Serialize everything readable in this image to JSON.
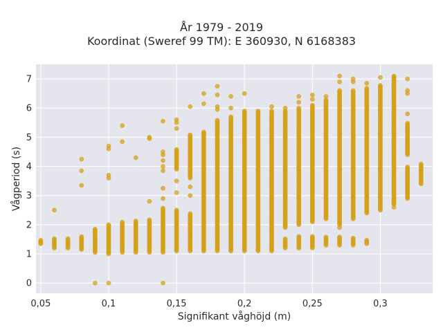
{
  "chart_data": {
    "type": "scatter",
    "title": "År 1979 - 2019",
    "subtitle": "Koordinat (Sweref 99 TM): E 360930, N 6168383",
    "xlabel": "Signifikant våghöjd (m)",
    "ylabel": "Vågperiod (s)",
    "xlim": [
      0.0465,
      0.3385
    ],
    "ylim": [
      -0.35,
      7.5
    ],
    "xticks": [
      0.05,
      0.1,
      0.15,
      0.2,
      0.25,
      0.3
    ],
    "xtick_labels": [
      "0,05",
      "0,1",
      "0,15",
      "0,2",
      "0,25",
      "0,3"
    ],
    "yticks": [
      0,
      1,
      2,
      3,
      4,
      5,
      6,
      7
    ],
    "ytick_labels": [
      "0",
      "1",
      "2",
      "3",
      "4",
      "5",
      "6",
      "7"
    ],
    "grid": true,
    "marker_color": "#D4A017",
    "plot_background": "#E5E5EE",
    "columns": [
      {
        "x": 0.05,
        "ranges": [
          [
            1.35,
            1.5
          ]
        ],
        "points": []
      },
      {
        "x": 0.06,
        "ranges": [
          [
            1.2,
            1.55
          ]
        ],
        "points": [
          2.5
        ]
      },
      {
        "x": 0.07,
        "ranges": [
          [
            1.2,
            1.55
          ]
        ],
        "points": []
      },
      {
        "x": 0.08,
        "ranges": [
          [
            1.15,
            1.6
          ]
        ],
        "points": [
          3.35,
          3.85,
          4.25
        ]
      },
      {
        "x": 0.09,
        "ranges": [
          [
            1.05,
            1.85
          ]
        ],
        "points": [
          0.0
        ]
      },
      {
        "x": 0.1,
        "ranges": [
          [
            1.0,
            2.0
          ]
        ],
        "points": [
          0.0,
          3.6,
          3.7,
          4.6,
          4.7
        ]
      },
      {
        "x": 0.11,
        "ranges": [
          [
            1.05,
            2.1
          ]
        ],
        "points": [
          4.85,
          5.4
        ]
      },
      {
        "x": 0.12,
        "ranges": [
          [
            1.05,
            2.15
          ]
        ],
        "points": [
          4.3
        ]
      },
      {
        "x": 0.13,
        "ranges": [
          [
            1.05,
            2.2
          ]
        ],
        "points": [
          2.8,
          4.95,
          5.0
        ]
      },
      {
        "x": 0.14,
        "ranges": [
          [
            1.05,
            2.6
          ]
        ],
        "points": [
          0.0,
          2.9,
          3.25,
          3.85,
          4.0,
          4.2,
          4.4,
          4.5,
          5.55
        ]
      },
      {
        "x": 0.15,
        "ranges": [
          [
            1.1,
            2.5
          ],
          [
            3.9,
            4.6
          ]
        ],
        "points": [
          3.1,
          3.5,
          5.3,
          5.5,
          5.6
        ]
      },
      {
        "x": 0.16,
        "ranges": [
          [
            1.1,
            2.4
          ],
          [
            3.6,
            5.1
          ]
        ],
        "points": [
          3.0,
          3.3,
          6.05
        ]
      },
      {
        "x": 0.17,
        "ranges": [
          [
            1.1,
            5.2
          ]
        ],
        "points": [
          6.15,
          6.5
        ]
      },
      {
        "x": 0.18,
        "ranges": [
          [
            1.1,
            5.6
          ]
        ],
        "points": [
          5.95,
          6.05,
          6.45,
          6.75
        ]
      },
      {
        "x": 0.19,
        "ranges": [
          [
            1.1,
            5.7
          ]
        ],
        "points": [
          6.0,
          6.4
        ]
      },
      {
        "x": 0.2,
        "ranges": [
          [
            1.1,
            5.9
          ]
        ],
        "points": [
          6.5
        ]
      },
      {
        "x": 0.21,
        "ranges": [
          [
            1.1,
            5.9
          ]
        ],
        "points": []
      },
      {
        "x": 0.22,
        "ranges": [
          [
            1.1,
            5.9
          ]
        ],
        "points": [
          6.05
        ]
      },
      {
        "x": 0.23,
        "ranges": [
          [
            1.2,
            1.55
          ],
          [
            1.9,
            5.9
          ]
        ],
        "points": [
          6.0
        ]
      },
      {
        "x": 0.24,
        "ranges": [
          [
            1.2,
            1.6
          ],
          [
            2.0,
            6.0
          ]
        ],
        "points": [
          6.2,
          6.4
        ]
      },
      {
        "x": 0.25,
        "ranges": [
          [
            1.2,
            1.6
          ],
          [
            2.1,
            6.1
          ]
        ],
        "points": [
          6.3,
          6.45
        ]
      },
      {
        "x": 0.26,
        "ranges": [
          [
            1.3,
            1.6
          ],
          [
            2.2,
            6.3
          ]
        ],
        "points": [
          6.4
        ]
      },
      {
        "x": 0.27,
        "ranges": [
          [
            1.3,
            1.6
          ],
          [
            2.0,
            6.6
          ]
        ],
        "points": [
          1.9,
          6.9,
          7.1
        ]
      },
      {
        "x": 0.28,
        "ranges": [
          [
            1.3,
            1.55
          ],
          [
            2.2,
            6.6
          ]
        ],
        "points": [
          6.9,
          7.0
        ]
      },
      {
        "x": 0.29,
        "ranges": [
          [
            1.35,
            1.5
          ],
          [
            2.4,
            6.7
          ]
        ],
        "points": [
          6.85
        ]
      },
      {
        "x": 0.3,
        "ranges": [
          [
            2.5,
            6.8
          ]
        ],
        "points": [
          7.05
        ]
      },
      {
        "x": 0.31,
        "ranges": [
          [
            2.7,
            7.1
          ]
        ],
        "points": [
          2.6
        ]
      },
      {
        "x": 0.32,
        "ranges": [
          [
            2.9,
            4.0
          ],
          [
            4.4,
            5.5
          ]
        ],
        "points": [
          4.5,
          5.8,
          6.5,
          6.6,
          7.0
        ]
      },
      {
        "x": 0.33,
        "ranges": [
          [
            3.4,
            4.1
          ]
        ],
        "points": []
      }
    ]
  }
}
